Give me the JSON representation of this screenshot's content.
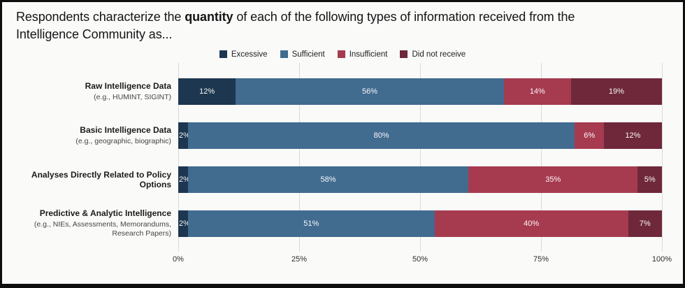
{
  "title": {
    "prefix": "Respondents characterize the ",
    "bold": "quantity",
    "suffix": " of each of the following types of information received from the Intelligence Community as..."
  },
  "chart_data": {
    "type": "bar",
    "orientation": "horizontal",
    "stacked": true,
    "categories": [
      {
        "label": "Raw Intelligence Data",
        "sublabel": "(e.g., HUMINT, SIGINT)"
      },
      {
        "label": "Basic Intelligence Data",
        "sublabel": "(e.g., geographic, biographic)"
      },
      {
        "label": "Analyses Directly Related to Policy Options",
        "sublabel": ""
      },
      {
        "label": "Predictive & Analytic Intelligence",
        "sublabel": "(e.g., NIEs, Assessments, Memorandums, Research Papers)"
      }
    ],
    "series": [
      {
        "name": "Excessive",
        "color": "#1e3750",
        "values": [
          12,
          2,
          2,
          2
        ]
      },
      {
        "name": "Sufficient",
        "color": "#426b90",
        "values": [
          56,
          80,
          58,
          51
        ]
      },
      {
        "name": "Insufficient",
        "color": "#a63b50",
        "values": [
          14,
          6,
          35,
          40
        ]
      },
      {
        "name": "Did not receive",
        "color": "#6e2839",
        "values": [
          19,
          12,
          5,
          7
        ]
      }
    ],
    "value_suffix": "%",
    "x_ticks": [
      "0%",
      "25%",
      "50%",
      "75%",
      "100%"
    ],
    "xlim": [
      0,
      100
    ],
    "legend_position": "top",
    "grid": true
  }
}
